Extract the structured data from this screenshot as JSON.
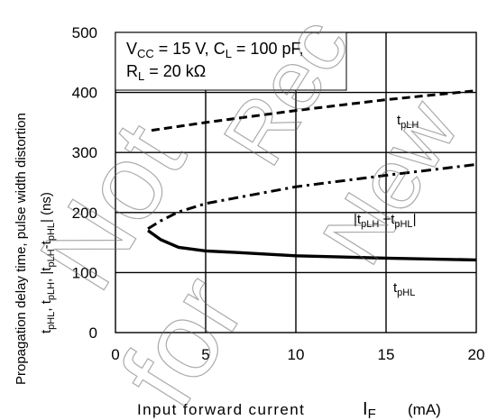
{
  "chart_data": {
    "type": "line",
    "xlabel": "Input forward current",
    "xlabel_symbol": "I",
    "xlabel_symbol_sub": "F",
    "xlabel_unit": "(mA)",
    "ylabel_line1": "Propagation delay time, pulse width distortion",
    "ylabel_line2": "t_pHL, t_pLH, |t_pLH-t_pHL| (ns)",
    "xlim": [
      0,
      20
    ],
    "ylim": [
      0,
      500
    ],
    "x_ticks": [
      "0",
      "5",
      "10",
      "15",
      "20"
    ],
    "y_ticks": [
      "0",
      "100",
      "200",
      "300",
      "400",
      "500"
    ],
    "grid": true,
    "conditions": {
      "line1": "V_CC = 15 V, C_L = 100 pF,",
      "line2": "R_L = 20 kΩ"
    },
    "series": [
      {
        "name": "t_pLH",
        "style": "dashed",
        "x": [
          2,
          5,
          10,
          15,
          20
        ],
        "y": [
          337,
          350,
          370,
          388,
          403
        ]
      },
      {
        "name": "|t_pLH - t_pHL|",
        "style": "dashdot",
        "x": [
          1.8,
          2.5,
          3.5,
          5,
          10,
          15,
          20
        ],
        "y": [
          173,
          186,
          201,
          215,
          243,
          262,
          280
        ]
      },
      {
        "name": "t_pHL",
        "style": "solid",
        "x": [
          1.8,
          2.5,
          3.5,
          5,
          7,
          10,
          15,
          20
        ],
        "y": [
          170,
          155,
          142,
          136,
          133,
          128,
          124,
          121
        ]
      }
    ],
    "colors": {
      "line": "#000000",
      "grid": "#000000",
      "background": "#ffffff",
      "watermark": "#888888"
    }
  },
  "watermark": {
    "text": "Not Recommended for New Design"
  }
}
